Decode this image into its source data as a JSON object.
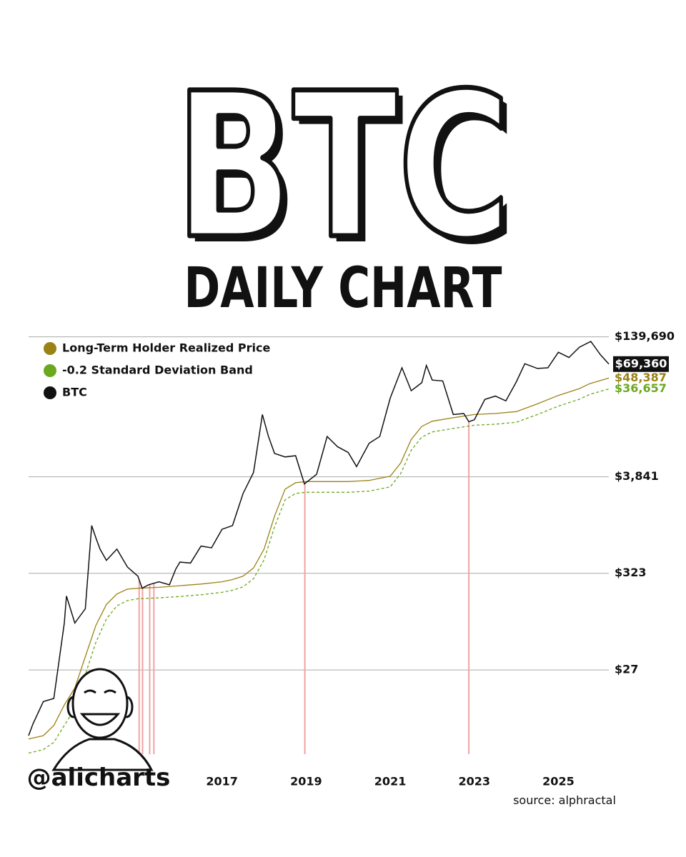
{
  "chart_data": {
    "type": "line",
    "title": "BTC",
    "subtitle": "DAILY CHART",
    "handle": "@alicharts",
    "source": "source: alphractal",
    "yscale": "log",
    "ylim": [
      3,
      200000
    ],
    "yticks": [
      {
        "value": 27,
        "label": "$27"
      },
      {
        "value": 323,
        "label": "$323"
      },
      {
        "value": 3841,
        "label": "$3,841"
      },
      {
        "value": 139690,
        "label": "$139,690"
      }
    ],
    "xlim": [
      2012.4,
      2026.25
    ],
    "xticks": [
      2017,
      2019,
      2021,
      2023,
      2025
    ],
    "grid": true,
    "legend": "top-left",
    "highlights": [
      2015.03,
      2015.11,
      2015.28,
      2015.38,
      2018.97,
      2022.87
    ],
    "highlight_color": "#f2a3a3",
    "series": [
      {
        "name": "Long-Term Holder Realized Price",
        "color": "#9b8215",
        "style": "solid",
        "x": [
          2012.4,
          2012.75,
          2013.0,
          2013.25,
          2013.5,
          2013.75,
          2014.0,
          2014.25,
          2014.5,
          2014.75,
          2015.0,
          2015.5,
          2016.0,
          2016.5,
          2017.0,
          2017.25,
          2017.5,
          2017.75,
          2018.0,
          2018.25,
          2018.5,
          2018.75,
          2019.0,
          2019.5,
          2020.0,
          2020.5,
          2021.0,
          2021.25,
          2021.5,
          2021.75,
          2022.0,
          2022.5,
          2023.0,
          2023.5,
          2024.0,
          2024.5,
          2025.0,
          2025.5,
          2025.75,
          2026.2
        ],
        "values": [
          4.6,
          5,
          6.5,
          11,
          17,
          38,
          85,
          145,
          190,
          215,
          220,
          225,
          235,
          245,
          260,
          275,
          300,
          370,
          600,
          1400,
          2800,
          3300,
          3400,
          3400,
          3400,
          3500,
          3900,
          5500,
          10000,
          14000,
          16000,
          17500,
          19000,
          19500,
          20500,
          25000,
          31000,
          37000,
          42000,
          48387
        ],
        "last_label": {
          "value": 48387,
          "label": "$48,387"
        }
      },
      {
        "name": "-0.2 Standard Deviation Band",
        "color": "#6aa81e",
        "style": "dashed",
        "x": [
          2012.4,
          2012.75,
          2013.0,
          2013.25,
          2013.5,
          2013.75,
          2014.0,
          2014.25,
          2014.5,
          2014.75,
          2015.0,
          2015.5,
          2016.0,
          2016.5,
          2017.0,
          2017.25,
          2017.5,
          2017.75,
          2018.0,
          2018.25,
          2018.5,
          2018.75,
          2019.0,
          2019.5,
          2020.0,
          2020.5,
          2021.0,
          2021.25,
          2021.5,
          2021.75,
          2022.0,
          2022.5,
          2023.0,
          2023.5,
          2024.0,
          2024.5,
          2025.0,
          2025.5,
          2025.75,
          2026.2
        ],
        "values": [
          3.2,
          3.5,
          4.2,
          6.5,
          10,
          24,
          55,
          100,
          140,
          160,
          168,
          172,
          178,
          186,
          198,
          209,
          228,
          281,
          456,
          1064,
          2128,
          2508,
          2584,
          2584,
          2584,
          2660,
          2964,
          4180,
          7600,
          10640,
          12160,
          13300,
          14440,
          14820,
          15580,
          19000,
          23560,
          28120,
          31920,
          36657
        ],
        "last_label": {
          "value": 36657,
          "label": "$36,657"
        }
      },
      {
        "name": "BTC",
        "color": "#111111",
        "style": "solid",
        "label_box": true,
        "x": [
          2012.4,
          2012.5,
          2012.75,
          2013.0,
          2013.25,
          2013.3,
          2013.5,
          2013.75,
          2013.9,
          2014.0,
          2014.1,
          2014.25,
          2014.5,
          2014.75,
          2015.0,
          2015.1,
          2015.25,
          2015.5,
          2015.75,
          2015.9,
          2016.0,
          2016.25,
          2016.5,
          2016.75,
          2017.0,
          2017.25,
          2017.5,
          2017.75,
          2017.96,
          2018.1,
          2018.25,
          2018.5,
          2018.75,
          2018.96,
          2019.25,
          2019.5,
          2019.75,
          2020.0,
          2020.2,
          2020.5,
          2020.75,
          2021.0,
          2021.28,
          2021.5,
          2021.75,
          2021.86,
          2022.0,
          2022.25,
          2022.5,
          2022.75,
          2022.87,
          2023.0,
          2023.25,
          2023.5,
          2023.75,
          2024.0,
          2024.2,
          2024.5,
          2024.75,
          2025.0,
          2025.25,
          2025.5,
          2025.77,
          2026.0,
          2026.2
        ],
        "values": [
          5,
          6.7,
          12,
          13,
          90,
          180,
          90,
          130,
          1100,
          800,
          600,
          450,
          600,
          380,
          300,
          220,
          240,
          260,
          240,
          360,
          430,
          420,
          650,
          620,
          1000,
          1100,
          2500,
          4300,
          19000,
          11000,
          7000,
          6400,
          6600,
          3200,
          4100,
          10800,
          8300,
          7200,
          5000,
          9100,
          10800,
          29000,
          63000,
          35000,
          43000,
          67000,
          46000,
          45000,
          19000,
          19500,
          15800,
          16600,
          28000,
          30500,
          27000,
          44000,
          70000,
          62000,
          63000,
          94000,
          82000,
          107000,
          124000,
          88000,
          69360
        ],
        "last_label": {
          "value": 69360,
          "label": "$69,360"
        }
      }
    ]
  }
}
